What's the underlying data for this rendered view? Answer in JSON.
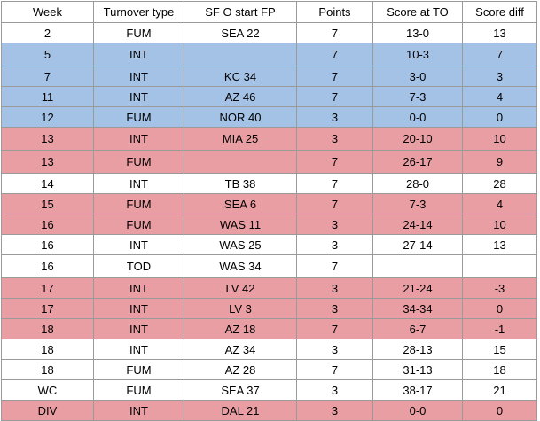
{
  "headers": [
    "Week",
    "Turnover type",
    "SF O start FP",
    "Points",
    "Score at TO",
    "Score diff"
  ],
  "rows": [
    {
      "week": "2",
      "type": "FUM",
      "fp": "SEA 22",
      "points": "7",
      "score": "13-0",
      "diff": "13",
      "color": "white"
    },
    {
      "week": "5",
      "type": "INT",
      "fp": "",
      "points": "7",
      "score": "10-3",
      "diff": "7",
      "color": "blue"
    },
    {
      "week": "7",
      "type": "INT",
      "fp": "KC 34",
      "points": "7",
      "score": "3-0",
      "diff": "3",
      "color": "blue"
    },
    {
      "week": "11",
      "type": "INT",
      "fp": "AZ 46",
      "points": "7",
      "score": "7-3",
      "diff": "4",
      "color": "blue"
    },
    {
      "week": "12",
      "type": "FUM",
      "fp": "NOR 40",
      "points": "3",
      "score": "0-0",
      "diff": "0",
      "color": "blue"
    },
    {
      "week": "13",
      "type": "INT",
      "fp": "MIA 25",
      "points": "3",
      "score": "20-10",
      "diff": "10",
      "color": "red"
    },
    {
      "week": "13",
      "type": "FUM",
      "fp": "",
      "points": "7",
      "score": "26-17",
      "diff": "9",
      "color": "red"
    },
    {
      "week": "14",
      "type": "INT",
      "fp": "TB 38",
      "points": "7",
      "score": "28-0",
      "diff": "28",
      "color": "white"
    },
    {
      "week": "15",
      "type": "FUM",
      "fp": "SEA 6",
      "points": "7",
      "score": "7-3",
      "diff": "4",
      "color": "red"
    },
    {
      "week": "16",
      "type": "FUM",
      "fp": "WAS 11",
      "points": "3",
      "score": "24-14",
      "diff": "10",
      "color": "red"
    },
    {
      "week": "16",
      "type": "INT",
      "fp": "WAS 25",
      "points": "3",
      "score": "27-14",
      "diff": "13",
      "color": "white"
    },
    {
      "week": "16",
      "type": "TOD",
      "fp": "WAS 34",
      "points": "7",
      "score": "",
      "diff": "",
      "color": "white"
    },
    {
      "week": "17",
      "type": "INT",
      "fp": "LV 42",
      "points": "3",
      "score": "21-24",
      "diff": "-3",
      "color": "red"
    },
    {
      "week": "17",
      "type": "INT",
      "fp": "LV 3",
      "points": "3",
      "score": "34-34",
      "diff": "0",
      "color": "red"
    },
    {
      "week": "18",
      "type": "INT",
      "fp": "AZ 18",
      "points": "7",
      "score": "6-7",
      "diff": "-1",
      "color": "red"
    },
    {
      "week": "18",
      "type": "INT",
      "fp": "AZ 34",
      "points": "3",
      "score": "28-13",
      "diff": "15",
      "color": "white"
    },
    {
      "week": "18",
      "type": "FUM",
      "fp": "AZ 28",
      "points": "7",
      "score": "31-13",
      "diff": "18",
      "color": "white"
    },
    {
      "week": "WC",
      "type": "FUM",
      "fp": "SEA 37",
      "points": "3",
      "score": "38-17",
      "diff": "21",
      "color": "white"
    },
    {
      "week": "DIV",
      "type": "INT",
      "fp": "DAL 21",
      "points": "3",
      "score": "0-0",
      "diff": "0",
      "color": "red"
    }
  ]
}
